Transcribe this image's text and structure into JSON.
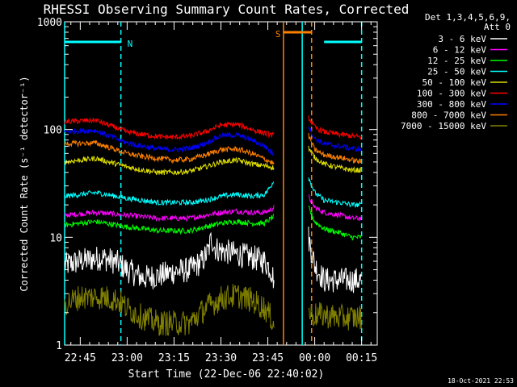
{
  "chart_data": {
    "type": "line",
    "title": "RHESSI Observing Summary Count Rates, Corrected",
    "xlabel": "Start Time (22-Dec-06 22:40:02)",
    "ylabel": "Corrected Count Rate (s⁻¹ detector⁻¹)",
    "ylog": true,
    "ylim": [
      1,
      1000
    ],
    "yticks": [
      {
        "value": 1,
        "label": "1"
      },
      {
        "value": 10,
        "label": "10"
      },
      {
        "value": 100,
        "label": "100"
      },
      {
        "value": 1000,
        "label": "1000"
      }
    ],
    "xlim_min": [
      0,
      100
    ],
    "xticks": [
      {
        "value": 5,
        "label": "22:45"
      },
      {
        "value": 20,
        "label": "23:00"
      },
      {
        "value": 35,
        "label": "23:15"
      },
      {
        "value": 50,
        "label": "23:30"
      },
      {
        "value": 65,
        "label": "23:45"
      },
      {
        "value": 80,
        "label": "00:00"
      },
      {
        "value": 95,
        "label": "00:15"
      }
    ],
    "legend_header": [
      "Det 1,3,4,5,6,9,",
      "Att 0"
    ],
    "legend_placement": "right",
    "series": [
      {
        "name": "3 - 6 keV",
        "color": "#ffffff",
        "points": [
          [
            0,
            5.5
          ],
          [
            5,
            6
          ],
          [
            12,
            6.5
          ],
          [
            17,
            5.8
          ],
          [
            20,
            5
          ],
          [
            25,
            4.2
          ],
          [
            30,
            4.4
          ],
          [
            35,
            4.8
          ],
          [
            40,
            5
          ],
          [
            44,
            6
          ],
          [
            46,
            7.5
          ],
          [
            47,
            10
          ],
          [
            48,
            8
          ],
          [
            50,
            7.5
          ],
          [
            55,
            7
          ],
          [
            60,
            6.5
          ],
          [
            64,
            6
          ],
          [
            66,
            5
          ],
          [
            67,
            4
          ]
        ],
        "seg2": [
          [
            78,
            10
          ],
          [
            80,
            5.5
          ],
          [
            83,
            4
          ],
          [
            88,
            4
          ],
          [
            92,
            4
          ],
          [
            95,
            4
          ]
        ]
      },
      {
        "name": "6 - 12 keV",
        "color": "#ff00ff",
        "points": [
          [
            0,
            16
          ],
          [
            10,
            17
          ],
          [
            20,
            16
          ],
          [
            25,
            15.5
          ],
          [
            30,
            15
          ],
          [
            35,
            15
          ],
          [
            40,
            15
          ],
          [
            45,
            16
          ],
          [
            50,
            17
          ],
          [
            55,
            17.5
          ],
          [
            60,
            17
          ],
          [
            64,
            17
          ],
          [
            66,
            18
          ],
          [
            67,
            19
          ]
        ],
        "seg2": [
          [
            78,
            24
          ],
          [
            80,
            19
          ],
          [
            83,
            17
          ],
          [
            88,
            16
          ],
          [
            92,
            15
          ],
          [
            95,
            15
          ]
        ]
      },
      {
        "name": "12 - 25 keV",
        "color": "#00ff00",
        "points": [
          [
            0,
            13
          ],
          [
            10,
            14
          ],
          [
            20,
            12.5
          ],
          [
            25,
            12
          ],
          [
            30,
            11.5
          ],
          [
            35,
            11.5
          ],
          [
            40,
            11.5
          ],
          [
            45,
            12.5
          ],
          [
            50,
            13.5
          ],
          [
            55,
            14
          ],
          [
            60,
            13.5
          ],
          [
            64,
            13.5
          ],
          [
            66,
            15
          ],
          [
            67,
            15.5
          ]
        ],
        "seg2": [
          [
            78,
            19
          ],
          [
            80,
            14
          ],
          [
            83,
            12
          ],
          [
            88,
            11
          ],
          [
            92,
            10
          ],
          [
            95,
            10
          ]
        ]
      },
      {
        "name": "25 - 50 keV",
        "color": "#00ffff",
        "points": [
          [
            0,
            24
          ],
          [
            10,
            26
          ],
          [
            20,
            23
          ],
          [
            25,
            22
          ],
          [
            30,
            21
          ],
          [
            35,
            21
          ],
          [
            40,
            21
          ],
          [
            45,
            22
          ],
          [
            50,
            24
          ],
          [
            55,
            25
          ],
          [
            60,
            24
          ],
          [
            64,
            25
          ],
          [
            66,
            30
          ],
          [
            67,
            34
          ]
        ],
        "seg2": [
          [
            78,
            36
          ],
          [
            80,
            26
          ],
          [
            83,
            22
          ],
          [
            88,
            21
          ],
          [
            92,
            20
          ],
          [
            95,
            20
          ]
        ]
      },
      {
        "name": "50 - 100 keV",
        "color": "#dddd00",
        "points": [
          [
            0,
            50
          ],
          [
            10,
            54
          ],
          [
            20,
            45
          ],
          [
            25,
            42
          ],
          [
            30,
            40
          ],
          [
            35,
            40
          ],
          [
            40,
            41
          ],
          [
            45,
            45
          ],
          [
            50,
            50
          ],
          [
            55,
            52
          ],
          [
            60,
            48
          ],
          [
            64,
            46
          ],
          [
            66,
            45
          ],
          [
            67,
            44
          ]
        ],
        "seg2": [
          [
            78,
            68
          ],
          [
            80,
            55
          ],
          [
            83,
            48
          ],
          [
            88,
            44
          ],
          [
            92,
            42
          ],
          [
            95,
            42
          ]
        ]
      },
      {
        "name": "100 - 300 keV",
        "color": "#ff0000",
        "points": [
          [
            0,
            118
          ],
          [
            10,
            122
          ],
          [
            20,
            95
          ],
          [
            25,
            90
          ],
          [
            30,
            86
          ],
          [
            35,
            85
          ],
          [
            40,
            87
          ],
          [
            45,
            95
          ],
          [
            50,
            110
          ],
          [
            55,
            112
          ],
          [
            60,
            100
          ],
          [
            64,
            92
          ],
          [
            66,
            90
          ],
          [
            67,
            88
          ]
        ],
        "seg2": [
          [
            78,
            130
          ],
          [
            80,
            105
          ],
          [
            83,
            95
          ],
          [
            88,
            90
          ],
          [
            92,
            87
          ],
          [
            95,
            85
          ]
        ]
      },
      {
        "name": "300 - 800 keV",
        "color": "#0000ff",
        "points": [
          [
            0,
            96
          ],
          [
            10,
            98
          ],
          [
            20,
            75
          ],
          [
            25,
            70
          ],
          [
            30,
            66
          ],
          [
            35,
            65
          ],
          [
            40,
            67
          ],
          [
            45,
            74
          ],
          [
            50,
            88
          ],
          [
            55,
            89
          ],
          [
            60,
            80
          ],
          [
            64,
            70
          ],
          [
            66,
            62
          ],
          [
            67,
            60
          ]
        ],
        "seg2": [
          [
            78,
            108
          ],
          [
            80,
            82
          ],
          [
            83,
            74
          ],
          [
            88,
            70
          ],
          [
            92,
            67
          ],
          [
            95,
            65
          ]
        ]
      },
      {
        "name": "800 - 7000 keV",
        "color": "#ff8000",
        "points": [
          [
            0,
            74
          ],
          [
            10,
            75
          ],
          [
            20,
            60
          ],
          [
            25,
            56
          ],
          [
            30,
            54
          ],
          [
            35,
            52
          ],
          [
            40,
            53
          ],
          [
            45,
            58
          ],
          [
            50,
            65
          ],
          [
            55,
            66
          ],
          [
            60,
            60
          ],
          [
            64,
            53
          ],
          [
            66,
            50
          ],
          [
            67,
            48
          ]
        ],
        "seg2": [
          [
            78,
            88
          ],
          [
            80,
            65
          ],
          [
            83,
            58
          ],
          [
            88,
            55
          ],
          [
            92,
            52
          ],
          [
            95,
            50
          ]
        ]
      },
      {
        "name": "7000 - 15000 keV",
        "color": "#808000",
        "points": [
          [
            0,
            2.4
          ],
          [
            5,
            2.8
          ],
          [
            12,
            2.8
          ],
          [
            17,
            2.6
          ],
          [
            20,
            2.2
          ],
          [
            25,
            1.8
          ],
          [
            30,
            1.6
          ],
          [
            35,
            1.6
          ],
          [
            40,
            1.6
          ],
          [
            45,
            2.2
          ],
          [
            50,
            2.7
          ],
          [
            55,
            2.9
          ],
          [
            60,
            2.6
          ],
          [
            64,
            2.2
          ],
          [
            66,
            1.8
          ],
          [
            67,
            1.6
          ]
        ],
        "seg2": [
          [
            78,
            2
          ],
          [
            80,
            1.9
          ],
          [
            83,
            1.9
          ],
          [
            88,
            1.8
          ],
          [
            92,
            1.8
          ],
          [
            95,
            1.8
          ]
        ]
      }
    ],
    "flags": [
      {
        "name": "N",
        "color": "#00ffff",
        "start_min": 0,
        "end_min": 18,
        "level": 650,
        "label": "N"
      },
      {
        "name": "N2",
        "color": "#00ffff",
        "start_min": 83,
        "end_min": 95,
        "level": 650,
        "label": ""
      },
      {
        "name": "S",
        "color": "#ff8000",
        "start_min": 70,
        "end_min": 79,
        "level": 800,
        "label": "S"
      }
    ],
    "vlines": [
      {
        "x_min": 0,
        "color": "#00ffff",
        "style": "solid"
      },
      {
        "x_min": 18,
        "color": "#00ffff",
        "style": "dashed"
      },
      {
        "x_min": 70,
        "color": "#ff8000",
        "style": "solid"
      },
      {
        "x_min": 76,
        "color": "#00ffff",
        "style": "solid"
      },
      {
        "x_min": 79,
        "color": "#ff8000",
        "style": "dashed"
      },
      {
        "x_min": 95,
        "color": "#00ffff",
        "style": "dashed"
      }
    ],
    "gap_min": [
      67,
      78
    ],
    "footer_date": "18-Oct-2021 22:53"
  }
}
